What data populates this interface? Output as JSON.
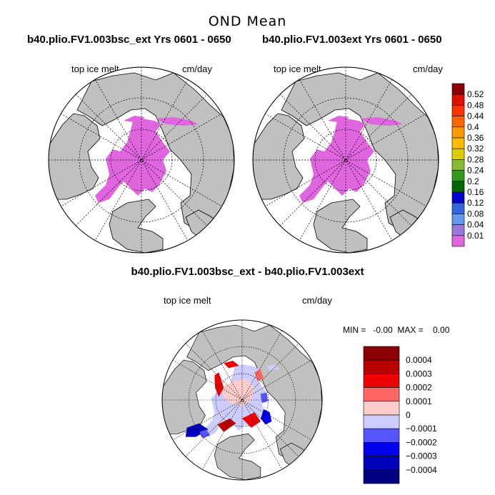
{
  "figure": {
    "title": "OND Mean",
    "top_left_title": "b40.plio.FV1.003bsc_ext  Yrs 0601 - 0650",
    "top_right_title": "b40.plio.FV1.003ext  Yrs 0601 - 0650",
    "diff_title": "b40.plio.FV1.003bsc_ext - b40.plio.FV1.003ext"
  },
  "panels": {
    "left": {
      "variable": "top ice melt",
      "units": "cm/day"
    },
    "right": {
      "variable": "top ice melt",
      "units": "cm/day"
    },
    "diff": {
      "variable": "top ice melt",
      "units": "cm/day",
      "stats": "MIN =   -0.00  MAX =    0.00"
    }
  },
  "colors": {
    "land": "#c0c0c0",
    "ocean": "#ffffff",
    "ice_melt_low": "#e066e0"
  },
  "chart_data": [
    {
      "type": "heatmap",
      "projection": "north-polar-stereographic",
      "title": "b40.plio.FV1.003bsc_ext  Yrs 0601 - 0650",
      "variable": "top ice melt",
      "units": "cm/day",
      "grid": true,
      "dominant_bin": "0.01",
      "colorbar": {
        "position": "right",
        "labels": [
          "0.52",
          "0.48",
          "0.44",
          "0.4",
          "0.36",
          "0.32",
          "0.28",
          "0.24",
          "0.2",
          "0.16",
          "0.12",
          "0.08",
          "0.04",
          "0.01"
        ],
        "colors": [
          "#8b0000",
          "#dd1100",
          "#ff3300",
          "#ff6600",
          "#ff9900",
          "#ffbb00",
          "#ddcc00",
          "#88bb33",
          "#33991a",
          "#006600",
          "#0000cc",
          "#3366dd",
          "#6699ee",
          "#9977dd",
          "#e066e0"
        ]
      }
    },
    {
      "type": "heatmap",
      "projection": "north-polar-stereographic",
      "title": "b40.plio.FV1.003ext  Yrs 0601 - 0650",
      "variable": "top ice melt",
      "units": "cm/day",
      "grid": true,
      "dominant_bin": "0.01"
    },
    {
      "type": "heatmap",
      "projection": "north-polar-stereographic",
      "title": "b40.plio.FV1.003bsc_ext - b40.plio.FV1.003ext",
      "variable": "top ice melt",
      "units": "cm/day",
      "grid": true,
      "min": -0.0,
      "max": 0.0,
      "colorbar": {
        "position": "right",
        "labels": [
          "0.0004",
          "0.0003",
          "0.0002",
          "0.0001",
          "0",
          "−0.0001",
          "−0.0002",
          "−0.0003",
          "−0.0004"
        ],
        "colors": [
          "#8b0000",
          "#bb0000",
          "#ee0000",
          "#ff6666",
          "#ffcccc",
          "#ccccff",
          "#5555ff",
          "#0000ee",
          "#0000bb",
          "#000080"
        ]
      }
    }
  ]
}
